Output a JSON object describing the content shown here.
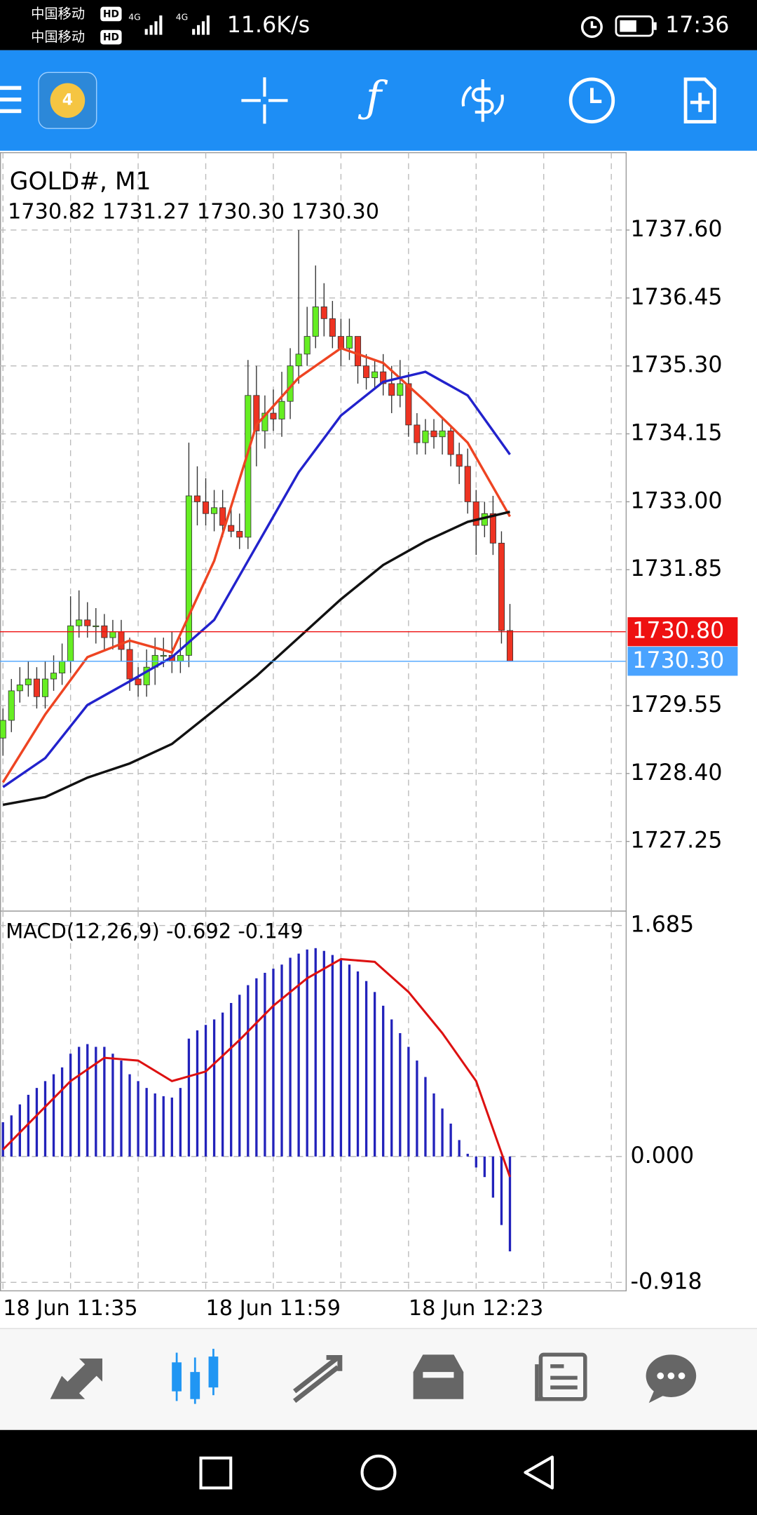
{
  "status_bar": {
    "carrier_1": "中国移动",
    "carrier_2": "中国移动",
    "hd_1": "HD",
    "hd_2": "HD",
    "net_1": "4G",
    "net_2": "4G",
    "speed": "11.6K/s",
    "time": "17:36"
  },
  "chart_data": [
    {
      "type": "candlestick",
      "title": "GOLD#, M1",
      "subtitle": "1730.82 1731.27 1730.30 1730.30",
      "open": [
        1729.0,
        1729.3,
        1729.8,
        1729.9,
        1730.0,
        1729.7,
        1730.0,
        1730.1,
        1730.3,
        1730.9,
        1731.0,
        1730.9,
        1730.9,
        1730.7,
        1730.8,
        1730.5,
        1730.0,
        1729.9,
        1730.2,
        1730.4,
        1730.4,
        1730.3,
        1730.4,
        1733.1,
        1733.0,
        1732.8,
        1732.9,
        1732.6,
        1732.5,
        1732.4,
        1734.8,
        1734.2,
        1734.5,
        1734.4,
        1734.7,
        1735.3,
        1735.5,
        1735.8,
        1736.3,
        1736.1,
        1735.8,
        1735.6,
        1735.8,
        1735.3,
        1735.1,
        1735.2,
        1735.0,
        1734.8,
        1735.0,
        1734.3,
        1734.0,
        1734.2,
        1734.1,
        1734.2,
        1733.8,
        1733.6,
        1733.0,
        1732.6,
        1732.8,
        1732.3,
        1730.82
      ],
      "high": [
        1729.5,
        1730.0,
        1730.2,
        1730.3,
        1730.2,
        1730.3,
        1730.4,
        1730.6,
        1731.4,
        1731.5,
        1731.3,
        1731.2,
        1731.1,
        1731.0,
        1731.0,
        1730.7,
        1730.2,
        1730.5,
        1730.7,
        1730.7,
        1730.8,
        1730.7,
        1734.0,
        1733.6,
        1733.4,
        1733.2,
        1733.2,
        1732.9,
        1732.8,
        1735.4,
        1735.3,
        1734.8,
        1734.9,
        1735.2,
        1735.6,
        1737.6,
        1736.3,
        1737.0,
        1736.7,
        1736.4,
        1736.1,
        1736.1,
        1735.8,
        1735.5,
        1735.4,
        1735.5,
        1735.3,
        1735.4,
        1735.2,
        1734.5,
        1734.4,
        1734.4,
        1734.4,
        1734.3,
        1734.0,
        1733.9,
        1733.2,
        1733.0,
        1733.1,
        1732.5,
        1731.27
      ],
      "low": [
        1728.7,
        1729.1,
        1729.6,
        1729.7,
        1729.5,
        1729.5,
        1729.8,
        1729.9,
        1730.1,
        1730.7,
        1730.7,
        1730.6,
        1730.5,
        1730.5,
        1730.3,
        1729.8,
        1729.7,
        1729.7,
        1729.9,
        1730.2,
        1730.1,
        1730.1,
        1730.2,
        1732.6,
        1732.6,
        1732.5,
        1732.4,
        1732.4,
        1732.2,
        1732.2,
        1733.6,
        1733.9,
        1734.2,
        1734.1,
        1734.4,
        1735.0,
        1735.3,
        1735.6,
        1735.8,
        1735.6,
        1735.3,
        1735.4,
        1735.0,
        1734.9,
        1734.9,
        1734.8,
        1734.5,
        1734.6,
        1734.1,
        1733.8,
        1733.8,
        1733.9,
        1733.8,
        1733.6,
        1733.3,
        1732.8,
        1732.1,
        1732.4,
        1732.1,
        1730.6,
        1730.3
      ],
      "close": [
        1729.3,
        1729.8,
        1729.9,
        1730.0,
        1729.7,
        1730.0,
        1730.1,
        1730.3,
        1730.9,
        1731.0,
        1730.9,
        1730.9,
        1730.7,
        1730.8,
        1730.5,
        1730.0,
        1729.9,
        1730.2,
        1730.4,
        1730.4,
        1730.3,
        1730.4,
        1733.1,
        1733.0,
        1732.8,
        1732.9,
        1732.6,
        1732.5,
        1732.4,
        1734.8,
        1734.2,
        1734.5,
        1734.4,
        1734.7,
        1735.3,
        1735.5,
        1735.8,
        1736.3,
        1736.1,
        1735.8,
        1735.6,
        1735.8,
        1735.3,
        1735.1,
        1735.2,
        1735.0,
        1734.8,
        1735.0,
        1734.3,
        1734.0,
        1734.2,
        1734.1,
        1734.2,
        1733.8,
        1733.6,
        1733.0,
        1732.6,
        1732.8,
        1732.3,
        1730.82,
        1730.3
      ],
      "up_color": "#66ee22",
      "down_color": "#ee3322",
      "series": [
        {
          "color": "#ee4422",
          "x": [
            0,
            5,
            10,
            15,
            20,
            25,
            30,
            35,
            40,
            45,
            50,
            55,
            60
          ],
          "values": [
            1728.25,
            1729.4,
            1730.37,
            1730.65,
            1730.45,
            1732.0,
            1734.3,
            1735.1,
            1735.6,
            1735.35,
            1734.7,
            1734.0,
            1732.75
          ]
        },
        {
          "color": "#2222cc",
          "x": [
            0,
            5,
            10,
            15,
            20,
            25,
            30,
            35,
            40,
            45,
            50,
            55,
            60
          ],
          "values": [
            1728.17,
            1728.66,
            1729.56,
            1729.96,
            1730.37,
            1731.0,
            1732.25,
            1733.5,
            1734.46,
            1735.03,
            1735.2,
            1734.8,
            1733.8
          ]
        },
        {
          "color": "#111111",
          "x": [
            0,
            5,
            10,
            15,
            20,
            25,
            30,
            35,
            40,
            45,
            50,
            55,
            60
          ],
          "values": [
            1727.87,
            1728.0,
            1728.33,
            1728.57,
            1728.9,
            1729.47,
            1730.05,
            1730.7,
            1731.35,
            1731.93,
            1732.33,
            1732.66,
            1732.83
          ]
        }
      ],
      "bid": {
        "value": 1730.8,
        "label": "1730.80",
        "color": "#ee1111"
      },
      "ask": {
        "value": 1730.3,
        "label": "1730.30",
        "color": "#4aa3ff"
      },
      "xlim": [
        -0.35,
        73.7
      ],
      "xticks": [
        {
          "value": 0,
          "label": "18 Jun 11:35"
        },
        {
          "value": 8,
          "label": null
        },
        {
          "value": 16,
          "label": null
        },
        {
          "value": 24,
          "label": "18 Jun 11:59"
        },
        {
          "value": 32,
          "label": null
        },
        {
          "value": 40,
          "label": null
        },
        {
          "value": 48,
          "label": "18 Jun 12:23"
        },
        {
          "value": 56,
          "label": null
        },
        {
          "value": 64,
          "label": null
        },
        {
          "value": 72,
          "label": null
        }
      ],
      "ylim": [
        1726.07,
        1738.91
      ],
      "yticks": [
        {
          "value": 1737.6,
          "label": "1737.60"
        },
        {
          "value": 1736.45,
          "label": "1736.45"
        },
        {
          "value": 1735.3,
          "label": "1735.30"
        },
        {
          "value": 1734.15,
          "label": "1734.15"
        },
        {
          "value": 1733.0,
          "label": "1733.00"
        },
        {
          "value": 1731.85,
          "label": "1731.85"
        },
        {
          "value": 1729.55,
          "label": "1729.55"
        },
        {
          "value": 1728.4,
          "label": "1728.40"
        },
        {
          "value": 1727.25,
          "label": "1727.25"
        }
      ],
      "grid": true
    },
    {
      "type": "macd",
      "title": "MACD(12,26,9) -0.692 -0.149",
      "values": [
        0.25,
        0.3,
        0.38,
        0.45,
        0.5,
        0.55,
        0.6,
        0.65,
        0.75,
        0.8,
        0.82,
        0.8,
        0.8,
        0.75,
        0.7,
        0.6,
        0.55,
        0.5,
        0.46,
        0.44,
        0.43,
        0.5,
        0.86,
        0.92,
        0.96,
        1.0,
        1.05,
        1.12,
        1.18,
        1.25,
        1.3,
        1.34,
        1.37,
        1.4,
        1.45,
        1.48,
        1.51,
        1.52,
        1.5,
        1.47,
        1.44,
        1.4,
        1.35,
        1.28,
        1.2,
        1.1,
        1.0,
        0.9,
        0.8,
        0.7,
        0.58,
        0.46,
        0.35,
        0.24,
        0.12,
        0.02,
        -0.08,
        -0.15,
        -0.3,
        -0.5,
        -0.692
      ],
      "color": "#2222bb",
      "signal": {
        "color": "#dd1111",
        "x": [
          0,
          4,
          8,
          12,
          16,
          20,
          24,
          28,
          32,
          36,
          40,
          44,
          48,
          52,
          56,
          60
        ],
        "values": [
          0.05,
          0.3,
          0.55,
          0.72,
          0.7,
          0.55,
          0.62,
          0.85,
          1.1,
          1.3,
          1.44,
          1.42,
          1.2,
          0.9,
          0.55,
          -0.149
        ]
      },
      "ylim": [
        -0.98,
        1.79
      ],
      "yticks": [
        1.685,
        {
          "value": 0,
          "label": "0.000"
        },
        -0.918
      ]
    }
  ]
}
